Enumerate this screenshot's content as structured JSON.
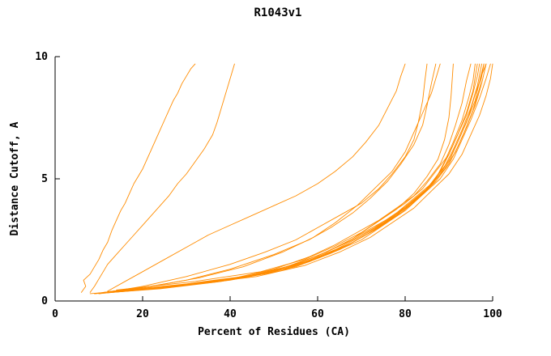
{
  "chart_data": {
    "type": "line",
    "title": "R1043v1",
    "xlabel": "Percent of Residues (CA)",
    "ylabel": "Distance Cutoff, A",
    "xlim": [
      0,
      100
    ],
    "ylim": [
      0,
      10
    ],
    "xticks": [
      "0",
      "20",
      "40",
      "60",
      "80",
      "100"
    ],
    "yticks": [
      "0",
      "5",
      "10"
    ],
    "grid": false,
    "legend": "none",
    "line_color": "#ff8c00",
    "series": [
      [
        [
          6,
          0.35
        ],
        [
          7,
          0.6
        ],
        [
          6.5,
          0.85
        ],
        [
          8,
          1.1
        ],
        [
          9,
          1.4
        ],
        [
          10,
          1.7
        ],
        [
          11,
          2.1
        ],
        [
          12,
          2.4
        ],
        [
          13,
          2.9
        ],
        [
          14,
          3.3
        ],
        [
          15,
          3.7
        ],
        [
          16,
          4.0
        ],
        [
          17,
          4.4
        ],
        [
          18,
          4.8
        ],
        [
          19,
          5.1
        ],
        [
          20,
          5.4
        ],
        [
          21,
          5.8
        ],
        [
          22,
          6.2
        ],
        [
          23,
          6.6
        ],
        [
          24,
          7.0
        ],
        [
          25,
          7.4
        ],
        [
          26,
          7.8
        ],
        [
          27,
          8.2
        ],
        [
          28,
          8.5
        ],
        [
          29,
          8.9
        ],
        [
          30,
          9.2
        ],
        [
          31,
          9.5
        ],
        [
          32,
          9.7
        ]
      ],
      [
        [
          8,
          0.35
        ],
        [
          9,
          0.6
        ],
        [
          10,
          0.9
        ],
        [
          11,
          1.2
        ],
        [
          12,
          1.5
        ],
        [
          14,
          1.9
        ],
        [
          16,
          2.3
        ],
        [
          18,
          2.7
        ],
        [
          20,
          3.1
        ],
        [
          22,
          3.5
        ],
        [
          24,
          3.9
        ],
        [
          26,
          4.3
        ],
        [
          28,
          4.8
        ],
        [
          30,
          5.2
        ],
        [
          32,
          5.7
        ],
        [
          34,
          6.2
        ],
        [
          36,
          6.8
        ],
        [
          37,
          7.3
        ],
        [
          38,
          7.9
        ],
        [
          39,
          8.5
        ],
        [
          40,
          9.1
        ],
        [
          41,
          9.7
        ]
      ],
      [
        [
          12,
          0.4
        ],
        [
          16,
          0.8
        ],
        [
          20,
          1.2
        ],
        [
          25,
          1.7
        ],
        [
          30,
          2.2
        ],
        [
          35,
          2.7
        ],
        [
          40,
          3.1
        ],
        [
          45,
          3.5
        ],
        [
          50,
          3.9
        ],
        [
          55,
          4.3
        ],
        [
          60,
          4.8
        ],
        [
          64,
          5.3
        ],
        [
          68,
          5.9
        ],
        [
          71,
          6.5
        ],
        [
          74,
          7.2
        ],
        [
          76,
          7.9
        ],
        [
          78,
          8.6
        ],
        [
          79,
          9.2
        ],
        [
          80,
          9.7
        ]
      ],
      [
        [
          10,
          0.3
        ],
        [
          20,
          0.6
        ],
        [
          30,
          1.0
        ],
        [
          40,
          1.5
        ],
        [
          48,
          2.0
        ],
        [
          55,
          2.5
        ],
        [
          60,
          3.0
        ],
        [
          65,
          3.5
        ],
        [
          70,
          4.0
        ],
        [
          74,
          4.6
        ],
        [
          77,
          5.2
        ],
        [
          80,
          5.9
        ],
        [
          82,
          6.6
        ],
        [
          83,
          7.3
        ],
        [
          84,
          8.2
        ],
        [
          84.5,
          9.0
        ],
        [
          85,
          9.7
        ]
      ],
      [
        [
          9,
          0.3
        ],
        [
          20,
          0.55
        ],
        [
          30,
          0.85
        ],
        [
          40,
          1.3
        ],
        [
          50,
          1.9
        ],
        [
          58,
          2.5
        ],
        [
          63,
          3.0
        ],
        [
          68,
          3.6
        ],
        [
          72,
          4.2
        ],
        [
          76,
          4.9
        ],
        [
          79,
          5.6
        ],
        [
          82,
          6.4
        ],
        [
          84,
          7.2
        ],
        [
          85,
          8.0
        ],
        [
          86,
          8.9
        ],
        [
          87,
          9.7
        ]
      ],
      [
        [
          11,
          0.35
        ],
        [
          22,
          0.6
        ],
        [
          33,
          0.95
        ],
        [
          43,
          1.4
        ],
        [
          52,
          2.0
        ],
        [
          59,
          2.6
        ],
        [
          64,
          3.2
        ],
        [
          69,
          3.9
        ],
        [
          73,
          4.6
        ],
        [
          77,
          5.3
        ],
        [
          80,
          6.1
        ],
        [
          82,
          6.9
        ],
        [
          84,
          7.7
        ],
        [
          86,
          8.5
        ],
        [
          87,
          9.1
        ],
        [
          88,
          9.7
        ]
      ],
      [
        [
          10,
          0.3
        ],
        [
          25,
          0.55
        ],
        [
          40,
          0.9
        ],
        [
          50,
          1.3
        ],
        [
          58,
          1.8
        ],
        [
          64,
          2.3
        ],
        [
          69,
          2.8
        ],
        [
          74,
          3.3
        ],
        [
          78,
          3.8
        ],
        [
          82,
          4.3
        ],
        [
          85,
          4.9
        ],
        [
          88,
          5.6
        ],
        [
          90,
          6.4
        ],
        [
          91.5,
          7.2
        ],
        [
          93,
          8.1
        ],
        [
          94,
          9.0
        ],
        [
          95,
          9.7
        ]
      ],
      [
        [
          12,
          0.35
        ],
        [
          28,
          0.6
        ],
        [
          42,
          0.95
        ],
        [
          52,
          1.35
        ],
        [
          60,
          1.85
        ],
        [
          66,
          2.35
        ],
        [
          71,
          2.85
        ],
        [
          76,
          3.35
        ],
        [
          80,
          3.85
        ],
        [
          84,
          4.4
        ],
        [
          87,
          5.0
        ],
        [
          89,
          5.7
        ],
        [
          91,
          6.5
        ],
        [
          93,
          7.4
        ],
        [
          94.5,
          8.3
        ],
        [
          95.5,
          9.0
        ],
        [
          96,
          9.7
        ]
      ],
      [
        [
          9,
          0.3
        ],
        [
          24,
          0.5
        ],
        [
          38,
          0.8
        ],
        [
          50,
          1.2
        ],
        [
          59,
          1.7
        ],
        [
          66,
          2.2
        ],
        [
          72,
          2.8
        ],
        [
          77,
          3.4
        ],
        [
          81,
          4.0
        ],
        [
          85,
          4.6
        ],
        [
          88,
          5.3
        ],
        [
          90,
          6.0
        ],
        [
          92,
          6.8
        ],
        [
          94,
          7.7
        ],
        [
          95.5,
          8.6
        ],
        [
          96.5,
          9.7
        ]
      ],
      [
        [
          13,
          0.4
        ],
        [
          30,
          0.7
        ],
        [
          45,
          1.05
        ],
        [
          55,
          1.5
        ],
        [
          62,
          2.0
        ],
        [
          68,
          2.5
        ],
        [
          73,
          3.0
        ],
        [
          78,
          3.6
        ],
        [
          82,
          4.2
        ],
        [
          86,
          4.8
        ],
        [
          89,
          5.5
        ],
        [
          91,
          6.2
        ],
        [
          93,
          7.0
        ],
        [
          95,
          7.9
        ],
        [
          96.5,
          8.8
        ],
        [
          97.5,
          9.7
        ]
      ],
      [
        [
          10,
          0.3
        ],
        [
          26,
          0.55
        ],
        [
          41,
          0.9
        ],
        [
          53,
          1.35
        ],
        [
          61,
          1.85
        ],
        [
          68,
          2.4
        ],
        [
          74,
          3.0
        ],
        [
          79,
          3.6
        ],
        [
          83,
          4.2
        ],
        [
          87,
          4.9
        ],
        [
          90,
          5.6
        ],
        [
          92,
          6.3
        ],
        [
          94,
          7.1
        ],
        [
          96,
          8.0
        ],
        [
          97.5,
          8.9
        ],
        [
          98.5,
          9.7
        ]
      ],
      [
        [
          11,
          0.35
        ],
        [
          27,
          0.6
        ],
        [
          43,
          0.95
        ],
        [
          55,
          1.4
        ],
        [
          63,
          1.95
        ],
        [
          70,
          2.5
        ],
        [
          75,
          3.1
        ],
        [
          80,
          3.7
        ],
        [
          84,
          4.35
        ],
        [
          88,
          5.0
        ],
        [
          91,
          5.8
        ],
        [
          93,
          6.6
        ],
        [
          95,
          7.4
        ],
        [
          97,
          8.3
        ],
        [
          98.5,
          9.1
        ],
        [
          99.5,
          9.7
        ]
      ],
      [
        [
          12,
          0.35
        ],
        [
          30,
          0.65
        ],
        [
          46,
          1.0
        ],
        [
          57,
          1.45
        ],
        [
          65,
          2.0
        ],
        [
          72,
          2.6
        ],
        [
          77,
          3.2
        ],
        [
          82,
          3.8
        ],
        [
          86,
          4.5
        ],
        [
          90,
          5.2
        ],
        [
          93,
          6.0
        ],
        [
          95,
          6.8
        ],
        [
          97,
          7.6
        ],
        [
          98.5,
          8.4
        ],
        [
          99.5,
          9.1
        ],
        [
          100,
          9.7
        ]
      ],
      [
        [
          8,
          0.3
        ],
        [
          22,
          0.5
        ],
        [
          36,
          0.8
        ],
        [
          48,
          1.15
        ],
        [
          57,
          1.6
        ],
        [
          64,
          2.1
        ],
        [
          70,
          2.65
        ],
        [
          75,
          3.2
        ],
        [
          80,
          3.8
        ],
        [
          84,
          4.4
        ],
        [
          87,
          5.05
        ],
        [
          90,
          5.75
        ],
        [
          92,
          6.5
        ],
        [
          94,
          7.3
        ],
        [
          96,
          8.2
        ],
        [
          97,
          9.0
        ],
        [
          98,
          9.7
        ]
      ],
      [
        [
          10,
          0.32
        ],
        [
          25,
          0.55
        ],
        [
          40,
          0.85
        ],
        [
          52,
          1.25
        ],
        [
          60,
          1.75
        ],
        [
          67,
          2.3
        ],
        [
          73,
          2.9
        ],
        [
          78,
          3.5
        ],
        [
          82,
          4.1
        ],
        [
          86,
          4.75
        ],
        [
          89,
          5.4
        ],
        [
          91.5,
          6.1
        ],
        [
          93.5,
          6.9
        ],
        [
          95.5,
          7.8
        ],
        [
          97,
          8.7
        ],
        [
          98,
          9.7
        ]
      ],
      [
        [
          14,
          0.45
        ],
        [
          32,
          0.8
        ],
        [
          47,
          1.2
        ],
        [
          57,
          1.7
        ],
        [
          64,
          2.25
        ],
        [
          70,
          2.8
        ],
        [
          75,
          3.4
        ],
        [
          80,
          4.0
        ],
        [
          84,
          4.6
        ],
        [
          87,
          5.3
        ],
        [
          90,
          6.0
        ],
        [
          92,
          6.8
        ],
        [
          94,
          7.6
        ],
        [
          95.5,
          8.5
        ],
        [
          96.5,
          9.2
        ],
        [
          97,
          9.7
        ]
      ],
      [
        [
          9,
          0.3
        ],
        [
          23,
          0.5
        ],
        [
          37,
          0.78
        ],
        [
          49,
          1.15
        ],
        [
          58,
          1.6
        ],
        [
          65,
          2.1
        ],
        [
          71,
          2.7
        ],
        [
          76,
          3.3
        ],
        [
          81,
          3.9
        ],
        [
          85,
          4.55
        ],
        [
          88,
          5.2
        ],
        [
          90.5,
          5.9
        ],
        [
          92.5,
          6.7
        ],
        [
          94.5,
          7.55
        ],
        [
          96,
          8.45
        ],
        [
          97.5,
          9.25
        ],
        [
          98.5,
          9.7
        ]
      ],
      [
        [
          12,
          0.38
        ],
        [
          28,
          0.65
        ],
        [
          44,
          1.0
        ],
        [
          54,
          1.45
        ],
        [
          62,
          2.0
        ],
        [
          68,
          2.55
        ],
        [
          73,
          3.15
        ],
        [
          78,
          3.75
        ],
        [
          82,
          4.4
        ],
        [
          85,
          5.1
        ],
        [
          87.5,
          5.8
        ],
        [
          89,
          6.6
        ],
        [
          90,
          7.5
        ],
        [
          90.5,
          8.4
        ],
        [
          91,
          9.7
        ]
      ]
    ]
  }
}
